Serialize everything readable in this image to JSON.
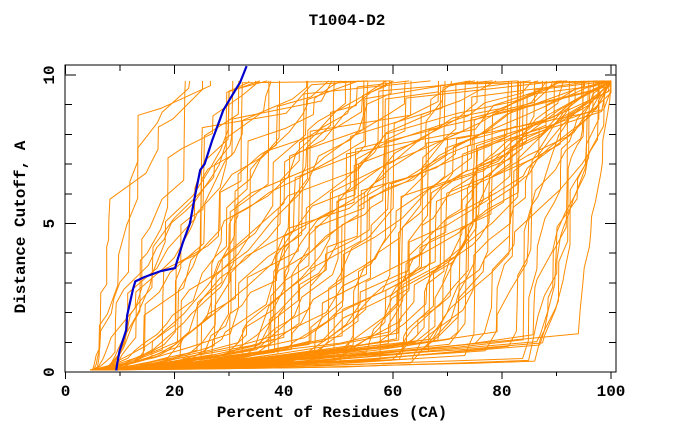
{
  "page": {
    "background": "#ffffff"
  },
  "chart_data": {
    "type": "line",
    "title": "T1004-D2",
    "xlabel": "Percent of Residues (CA)",
    "ylabel": "Distance Cutoff, A",
    "xlim": [
      0,
      100
    ],
    "ylim": [
      0,
      10
    ],
    "grid": false,
    "legend": "none",
    "axis_color": "#000000",
    "x_major_ticks": [
      0,
      20,
      40,
      60,
      80,
      100
    ],
    "x_minor_ticks": [
      10,
      30,
      50,
      70,
      90
    ],
    "y_major_ticks": [
      0,
      5,
      10
    ],
    "y_minor_ticks": [
      1,
      2,
      3,
      4,
      6,
      7,
      8,
      9
    ],
    "series": [
      {
        "name": "reference-model",
        "kind": "line",
        "color": "#0000cd",
        "width": 2.2,
        "points": [
          [
            9.3,
            0.05
          ],
          [
            9.5,
            0.3
          ],
          [
            9.9,
            0.7
          ],
          [
            10.4,
            1.0
          ],
          [
            11.1,
            1.4
          ],
          [
            11.3,
            1.9
          ],
          [
            11.9,
            2.4
          ],
          [
            12.4,
            2.8
          ],
          [
            12.8,
            3.05
          ],
          [
            14.5,
            3.2
          ],
          [
            17.5,
            3.4
          ],
          [
            20.1,
            3.5
          ],
          [
            20.4,
            3.7
          ],
          [
            21.5,
            4.35
          ],
          [
            22.8,
            5.0
          ],
          [
            23.7,
            5.9
          ],
          [
            24.7,
            6.8
          ],
          [
            25.5,
            7.0
          ],
          [
            26.9,
            7.8
          ],
          [
            27.3,
            8.0
          ],
          [
            28.3,
            8.5
          ],
          [
            28.9,
            8.8
          ],
          [
            30.5,
            9.3
          ],
          [
            31.5,
            9.6
          ],
          [
            32.0,
            9.75
          ],
          [
            33.2,
            10.3
          ]
        ]
      },
      {
        "name": "model-ensemble",
        "kind": "line-ensemble",
        "color": "#ff8c00",
        "width": 1,
        "count": 105,
        "seed": 20,
        "start_percent_range": [
          4.5,
          7.5
        ],
        "end_percent_range": [
          20,
          100
        ],
        "wedge_max_percent": 94,
        "max_cutoff": 9.8
      }
    ]
  }
}
